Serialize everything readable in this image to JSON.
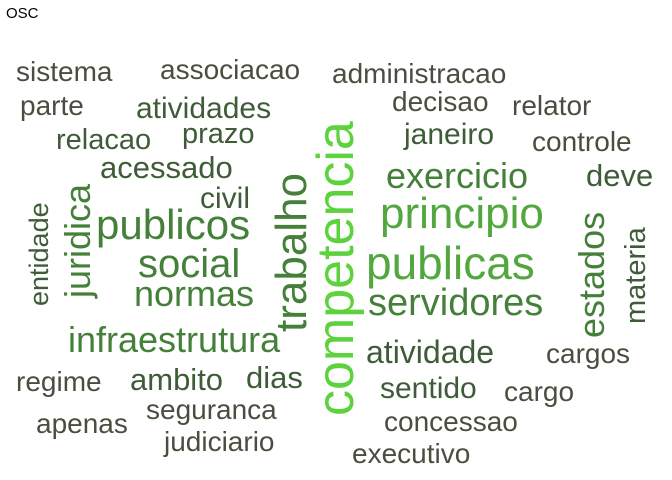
{
  "title": "OSC",
  "words": [
    {
      "text": "sistema"
    },
    {
      "text": "associacao"
    },
    {
      "text": "administracao"
    },
    {
      "text": "parte"
    },
    {
      "text": "atividades"
    },
    {
      "text": "decisao"
    },
    {
      "text": "relator"
    },
    {
      "text": "relacao"
    },
    {
      "text": "prazo"
    },
    {
      "text": "janeiro"
    },
    {
      "text": "controle"
    },
    {
      "text": "acessado"
    },
    {
      "text": "exercicio"
    },
    {
      "text": "deve"
    },
    {
      "text": "civil"
    },
    {
      "text": "principio"
    },
    {
      "text": "publicos"
    },
    {
      "text": "entidade"
    },
    {
      "text": "juridica"
    },
    {
      "text": "social"
    },
    {
      "text": "publicas"
    },
    {
      "text": "estados"
    },
    {
      "text": "materia"
    },
    {
      "text": "normas"
    },
    {
      "text": "trabalho"
    },
    {
      "text": "competencia"
    },
    {
      "text": "servidores"
    },
    {
      "text": "infraestrutura"
    },
    {
      "text": "atividade"
    },
    {
      "text": "cargos"
    },
    {
      "text": "regime"
    },
    {
      "text": "ambito"
    },
    {
      "text": "dias"
    },
    {
      "text": "sentido"
    },
    {
      "text": "cargo"
    },
    {
      "text": "apenas"
    },
    {
      "text": "seguranca"
    },
    {
      "text": "concessao"
    },
    {
      "text": "judiciario"
    },
    {
      "text": "executivo"
    }
  ]
}
